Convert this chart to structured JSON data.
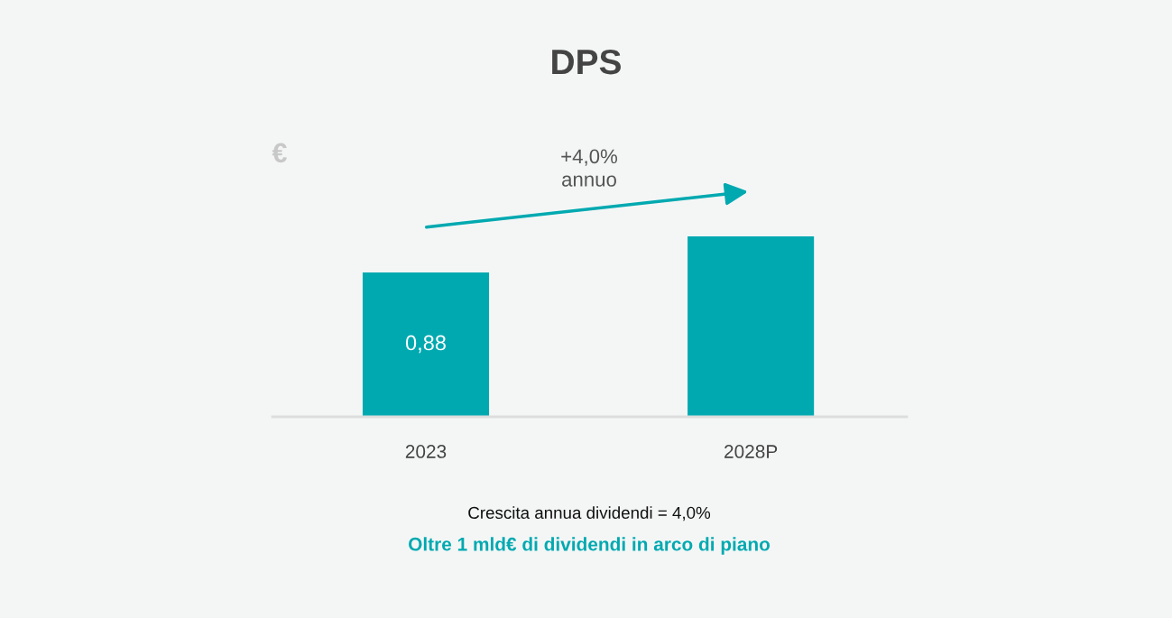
{
  "chart_data": {
    "type": "bar",
    "title": "DPS",
    "ylabel": "€",
    "categories": [
      "2023",
      "2028P"
    ],
    "values": [
      0.88,
      1.1
    ],
    "value_labels": [
      "0,88",
      null
    ],
    "color": "#00a9b0",
    "grid": false,
    "legend": false,
    "annotations": [
      "+4,0%\nannuo",
      "Crescita annua dividendi = 4,0%",
      "Oltre 1 mld€ di dividendi in arco di piano"
    ]
  }
}
